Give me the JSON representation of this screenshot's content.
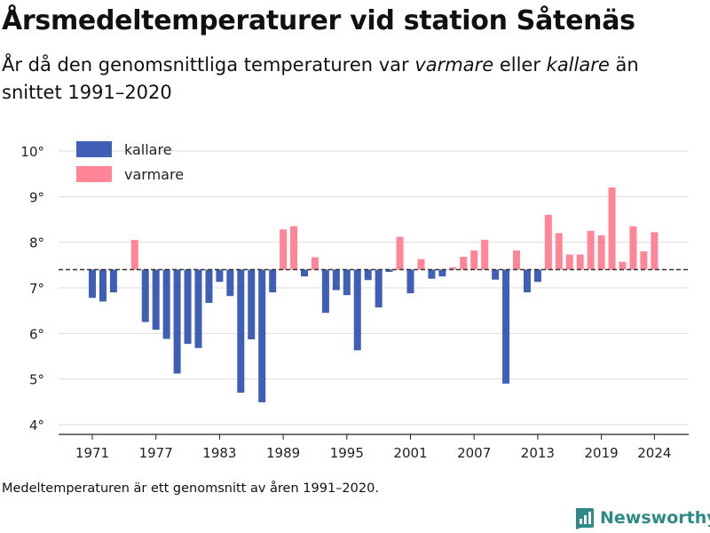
{
  "header": {
    "title": "Årsmedeltemperaturer vid station Såtenäs",
    "subtitle_pre": "År då den genomsnittliga temperaturen var ",
    "subtitle_warm": "varmare",
    "subtitle_mid": " eller ",
    "subtitle_cold": "kallare",
    "subtitle_post": " än snittet 1991–2020"
  },
  "footnote": "Medeltemperaturen är ett genomsnitt av åren 1991–2020.",
  "brand": {
    "name": "Newsworthy",
    "icon": "bar-chart-logo-icon"
  },
  "colors": {
    "kallare": "#3f5eb5",
    "varmare": "#ff8597",
    "baseline": "#333333",
    "grid": "#dddddd",
    "brand": "#2e8a89"
  },
  "chart_data": {
    "type": "bar",
    "title": "Årsmedeltemperaturer vid station Såtenäs",
    "baseline": 7.4,
    "ylim": [
      4,
      10
    ],
    "yticks": [
      4,
      5,
      6,
      7,
      8,
      9,
      10
    ],
    "ytick_labels": [
      "4°",
      "5°",
      "6°",
      "7°",
      "8°",
      "9°",
      "10°"
    ],
    "xtick_labels": [
      "1971",
      "1977",
      "1983",
      "1989",
      "1995",
      "2001",
      "2007",
      "2013",
      "2019",
      "2024"
    ],
    "grid": true,
    "legend": {
      "position": "top-left",
      "entries": [
        {
          "key": "kallare",
          "label": "kallare"
        },
        {
          "key": "varmare",
          "label": "varmare"
        }
      ]
    },
    "years": [
      1971,
      1972,
      1973,
      1974,
      1975,
      1976,
      1977,
      1978,
      1979,
      1980,
      1981,
      1982,
      1983,
      1984,
      1985,
      1986,
      1987,
      1988,
      1989,
      1990,
      1991,
      1992,
      1993,
      1994,
      1995,
      1996,
      1997,
      1998,
      1999,
      2000,
      2001,
      2002,
      2003,
      2004,
      2005,
      2006,
      2007,
      2008,
      2009,
      2010,
      2011,
      2012,
      2013,
      2014,
      2015,
      2016,
      2017,
      2018,
      2019,
      2020,
      2021,
      2022,
      2023,
      2024
    ],
    "values": [
      6.78,
      6.7,
      6.9,
      7.4,
      8.05,
      6.25,
      6.08,
      5.88,
      5.12,
      5.77,
      5.68,
      6.67,
      7.13,
      6.82,
      4.7,
      5.87,
      4.49,
      6.9,
      8.28,
      8.35,
      7.25,
      7.67,
      6.45,
      6.95,
      6.84,
      5.63,
      7.17,
      6.57,
      7.35,
      8.12,
      6.88,
      7.63,
      7.2,
      7.25,
      7.45,
      7.68,
      7.82,
      8.05,
      7.18,
      4.9,
      7.82,
      6.9,
      7.13,
      8.6,
      8.2,
      7.73,
      7.73,
      8.25,
      8.15,
      9.2,
      7.57,
      8.35,
      7.8,
      8.22
    ]
  }
}
